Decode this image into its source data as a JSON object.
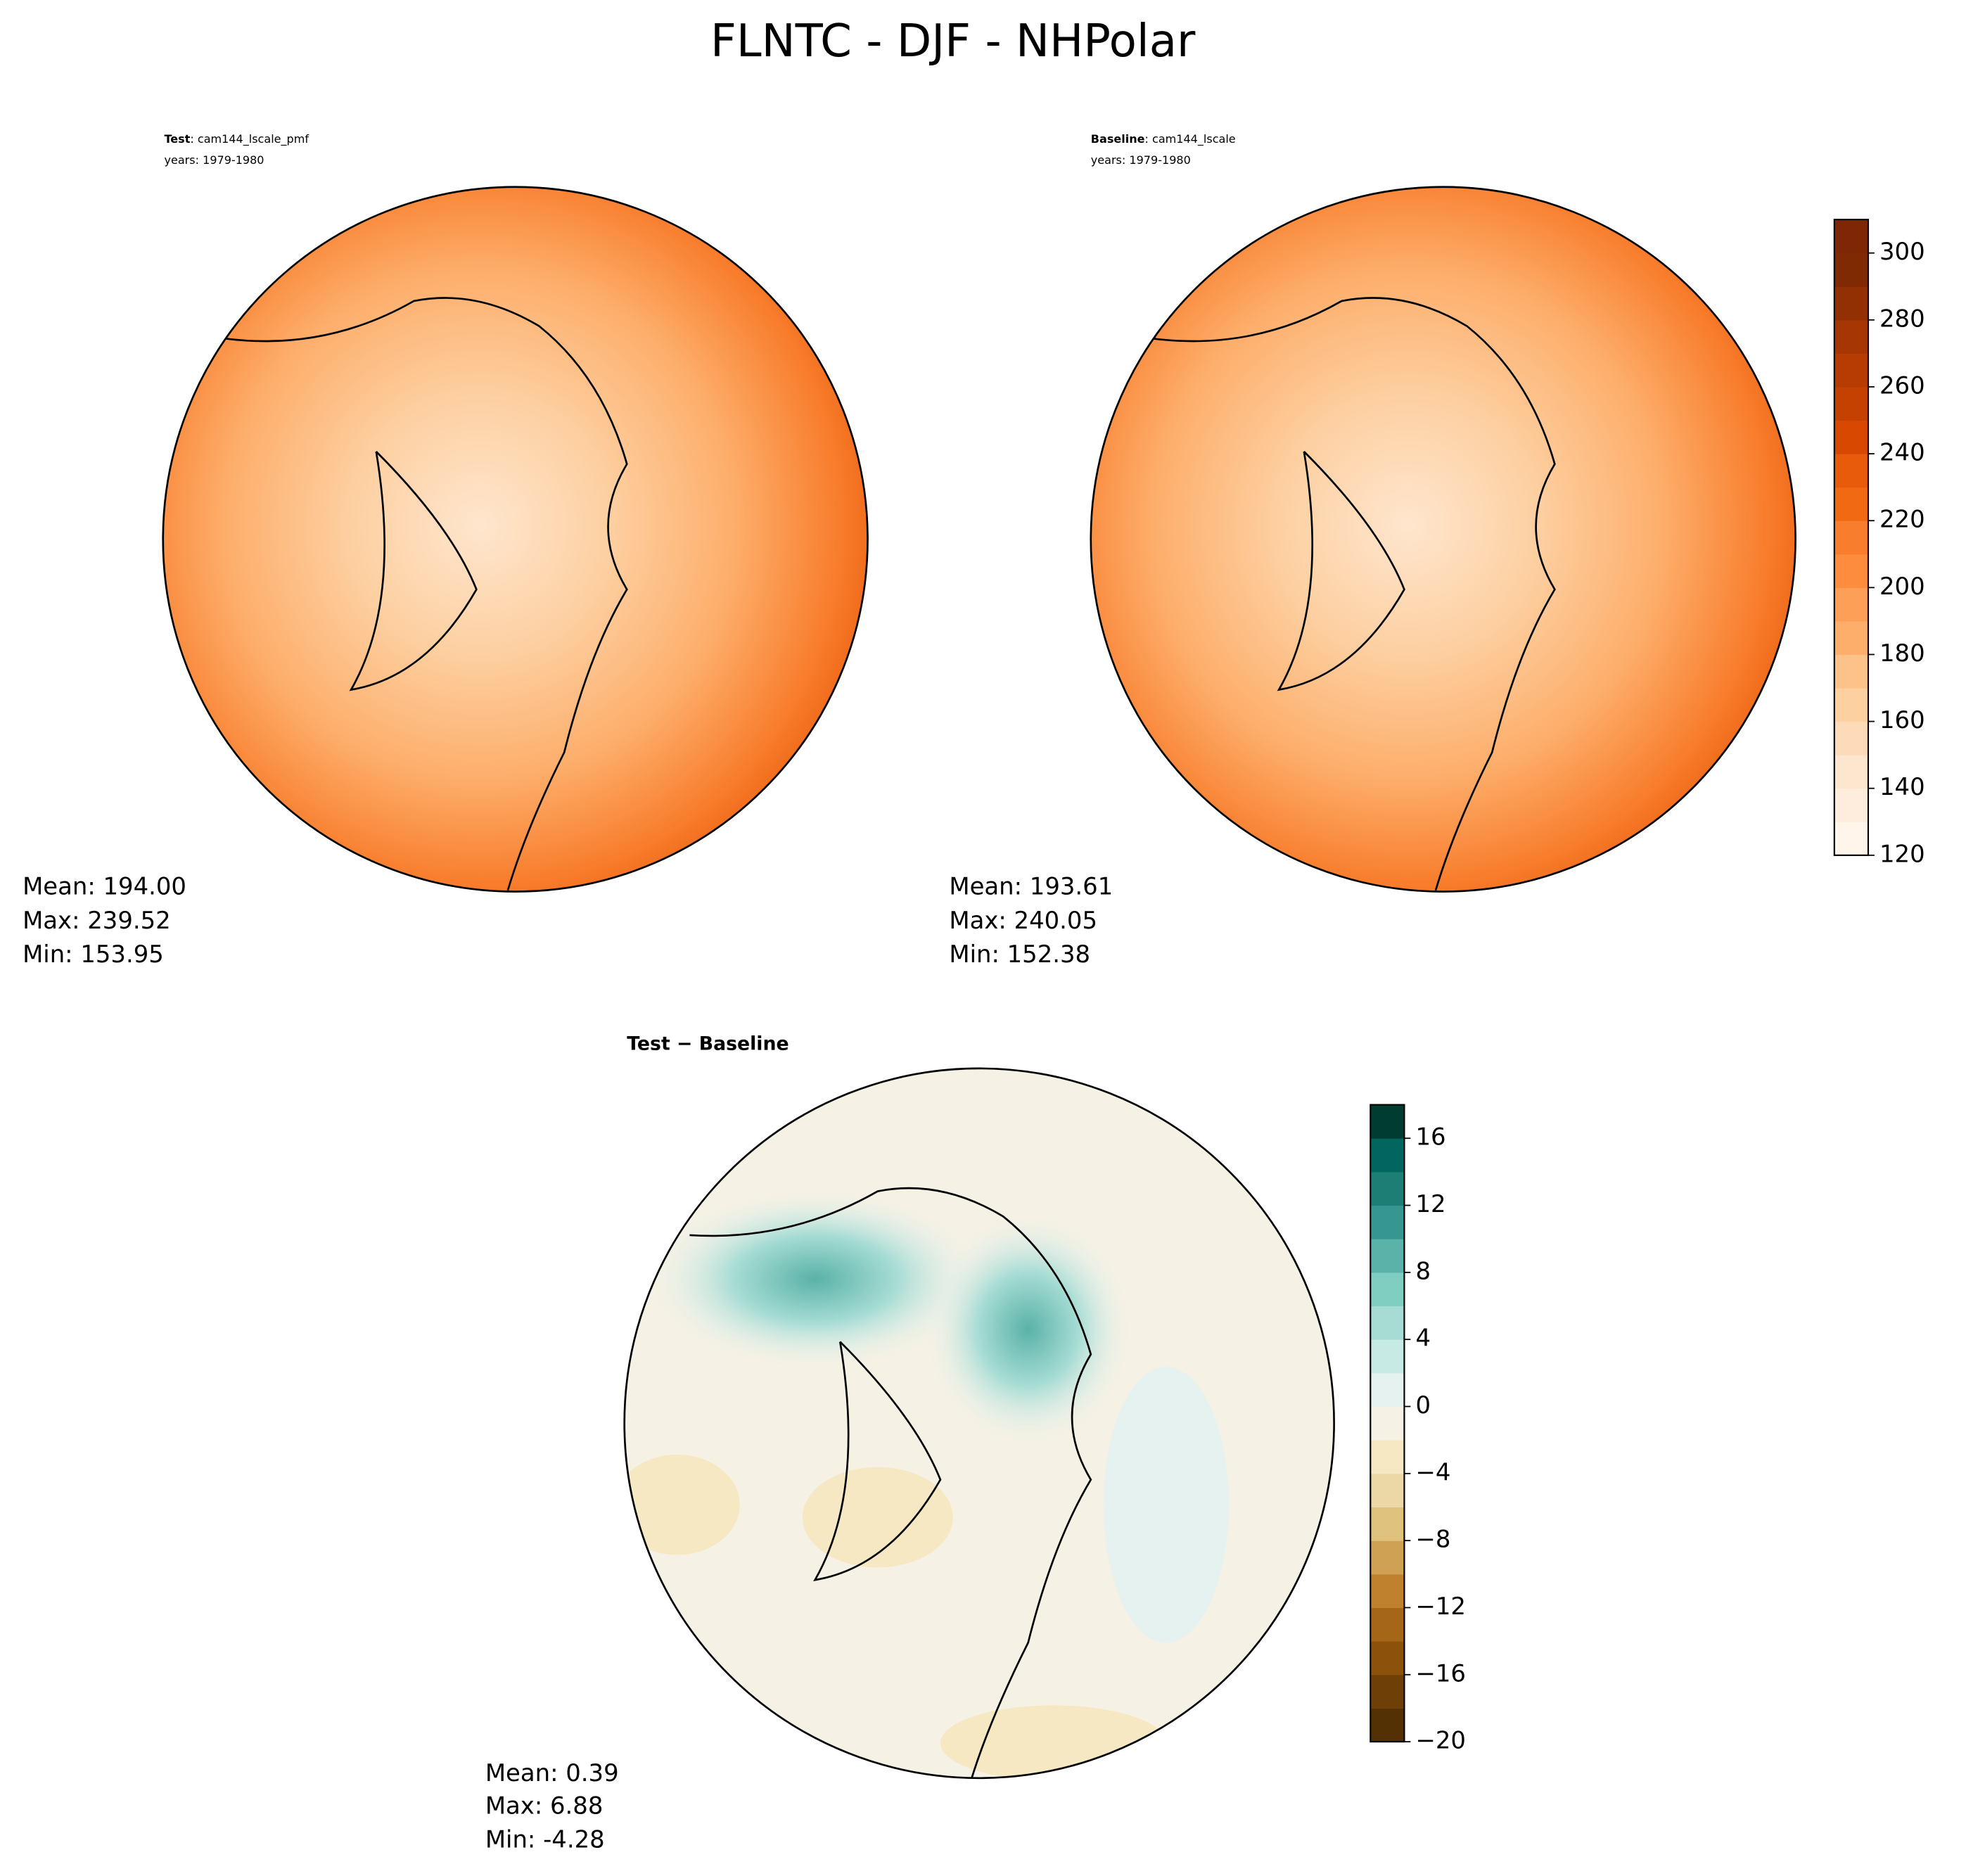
{
  "title": "FLNTC - DJF - NHPolar",
  "panels": [
    {
      "title_bold": "Test",
      "title_rest": ": cam144_lscale_pmf",
      "years": "years: 1979-1980",
      "stats": [
        "Mean: 194.00",
        "Max: 239.52",
        "Min: 153.95"
      ]
    },
    {
      "title_bold": "Baseline",
      "title_rest": ": cam144_lscale",
      "years": "years: 1979-1980",
      "stats": [
        "Mean: 193.61",
        "Max: 240.05",
        "Min: 152.38"
      ]
    },
    {
      "title_bold": "Test − Baseline",
      "stats": [
        "Mean:  0.39",
        "Max:  6.88",
        "Min: -4.28"
      ]
    }
  ],
  "colorbars": [
    {
      "lim": [
        120,
        310
      ],
      "ticks": [
        120,
        140,
        160,
        180,
        200,
        220,
        240,
        260,
        280,
        300
      ],
      "colors": [
        "#fff5eb",
        "#feeddc",
        "#fee6ce",
        "#fddbb8",
        "#fdd0a2",
        "#fdc18a",
        "#fdae6b",
        "#fd9f56",
        "#fd8d3c",
        "#f87d2c",
        "#f16913",
        "#e85b0b",
        "#d94801",
        "#c54102",
        "#b63c02",
        "#a63603",
        "#933003",
        "#802a04",
        "#7f2704"
      ]
    },
    {
      "lim": [
        -20,
        18
      ],
      "ticks": [
        {
          "value": -20,
          "label": "−20"
        },
        {
          "value": -16,
          "label": "−16"
        },
        {
          "value": -12,
          "label": "−12"
        },
        {
          "value": -8,
          "label": "−8"
        },
        {
          "value": -4,
          "label": "−4"
        },
        0,
        4,
        8,
        12,
        16
      ],
      "colors": [
        "#543005",
        "#6e4007",
        "#8c510a",
        "#a56617",
        "#bf812d",
        "#cfa154",
        "#dfc27d",
        "#ebd8a6",
        "#f6e8c3",
        "#f5f1e4",
        "#e5f2f0",
        "#c7eae5",
        "#a6dcd4",
        "#80cdc1",
        "#5ab2a8",
        "#35978f",
        "#1d7e76",
        "#01665e",
        "#003c30"
      ]
    }
  ]
}
